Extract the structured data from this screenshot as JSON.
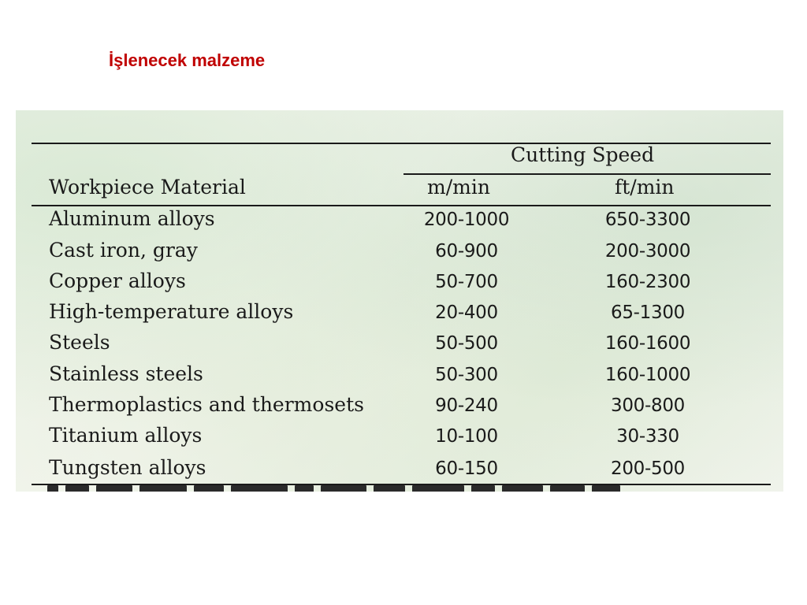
{
  "slide": {
    "title": "İşlenecek malzeme"
  },
  "table": {
    "group_header": "Cutting Speed",
    "row_header": "Workpiece Material",
    "unit_metric": "m/min",
    "unit_imperial": "ft/min",
    "rows": [
      {
        "material": "Aluminum alloys",
        "m_min": "200-1000",
        "ft_min": "650-3300"
      },
      {
        "material": "Cast iron, gray",
        "m_min": "60-900",
        "ft_min": "200-3000"
      },
      {
        "material": "Copper alloys",
        "m_min": "50-700",
        "ft_min": "160-2300"
      },
      {
        "material": "High-temperature alloys",
        "m_min": "20-400",
        "ft_min": "65-1300"
      },
      {
        "material": "Steels",
        "m_min": "50-500",
        "ft_min": "160-1600"
      },
      {
        "material": "Stainless steels",
        "m_min": "50-300",
        "ft_min": "160-1000"
      },
      {
        "material": "Thermoplastics and thermosets",
        "m_min": "90-240",
        "ft_min": "300-800"
      },
      {
        "material": "Titanium alloys",
        "m_min": "10-100",
        "ft_min": "30-330"
      },
      {
        "material": "Tungsten alloys",
        "m_min": "60-150",
        "ft_min": "200-500"
      }
    ]
  },
  "colors": {
    "title": "#c00000",
    "text": "#1a1a1a"
  }
}
